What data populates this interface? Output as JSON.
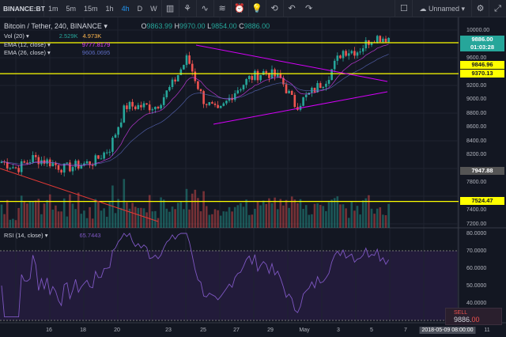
{
  "toolbar": {
    "symbol": "BINANCE:BT",
    "timeframes": [
      "1m",
      "5m",
      "15m",
      "1h",
      "4h",
      "D",
      "W"
    ],
    "active": "4h",
    "layout_name": "Unnamed",
    "icons": [
      "candles-icon",
      "indicators-icon",
      "compare-icon",
      "templates-icon",
      "alert-icon",
      "idea-icon",
      "replay-icon",
      "undo-icon",
      "redo-icon",
      "fullscreen-square-icon",
      "cloud-icon",
      "settings-icon",
      "expand-icon"
    ]
  },
  "legend": {
    "title": "Bitcoin / Tether, 240, BINANCE",
    "o_label": "O",
    "o": "9863.99",
    "h_label": "H",
    "h": "9970.00",
    "l_label": "L",
    "l": "9854.00",
    "c_label": "C",
    "c": "9886.00",
    "vol": "Vol (20)",
    "vol_v1": "2.529K",
    "vol_v2": "4.973K",
    "ema12": "EMA (12, close)",
    "ema12_v": "9777.8179",
    "ema26": "EMA (26, close)",
    "ema26_v": "9606.0695",
    "rsi": "RSI (14, close)",
    "rsi_v": "65.7443"
  },
  "price_axis": [
    "10000.00",
    "9600.00",
    "9200.00",
    "9000.00",
    "8800.00",
    "8600.00",
    "8400.00",
    "8200.00",
    "7800.00",
    "7400.00",
    "7200.00"
  ],
  "tags": {
    "last": "9886.00",
    "countdown": "01:03:28",
    "line1": "9846.96",
    "line2": "9370.13",
    "crosshair": "7947.88",
    "line3": "7524.47"
  },
  "rsi_axis": [
    "80.0000",
    "70.0000",
    "60.0000",
    "50.0000",
    "40.0000"
  ],
  "time_axis": [
    "16",
    "18",
    "20",
    "23",
    "25",
    "27",
    "29",
    "May",
    "3",
    "5",
    "7",
    "11"
  ],
  "time_cursor": "2018-05-09 08:00:00",
  "sell": {
    "label": "SELL",
    "price_main": "9886.",
    "price_frac": "00"
  },
  "colors": {
    "up": "#26a69a",
    "down": "#ef5350",
    "ema12": "#e040fb",
    "ema26": "#5c6bc0",
    "hline": "#ffff00",
    "rsi": "#7e57c2"
  },
  "chart_data": {
    "type": "candlestick",
    "interval": "240",
    "approx_closes": [
      8100,
      8000,
      8150,
      8100,
      8000,
      8050,
      8100,
      8300,
      8900,
      8900,
      8900,
      9200,
      9600,
      9000,
      8800,
      9100,
      9300,
      9400,
      9300,
      8900,
      9100,
      9300,
      9700,
      9700,
      9900,
      9886
    ],
    "horizontal_levels": [
      9886,
      9370.13,
      7524.47
    ],
    "rsi_levels": [
      70,
      30
    ]
  }
}
